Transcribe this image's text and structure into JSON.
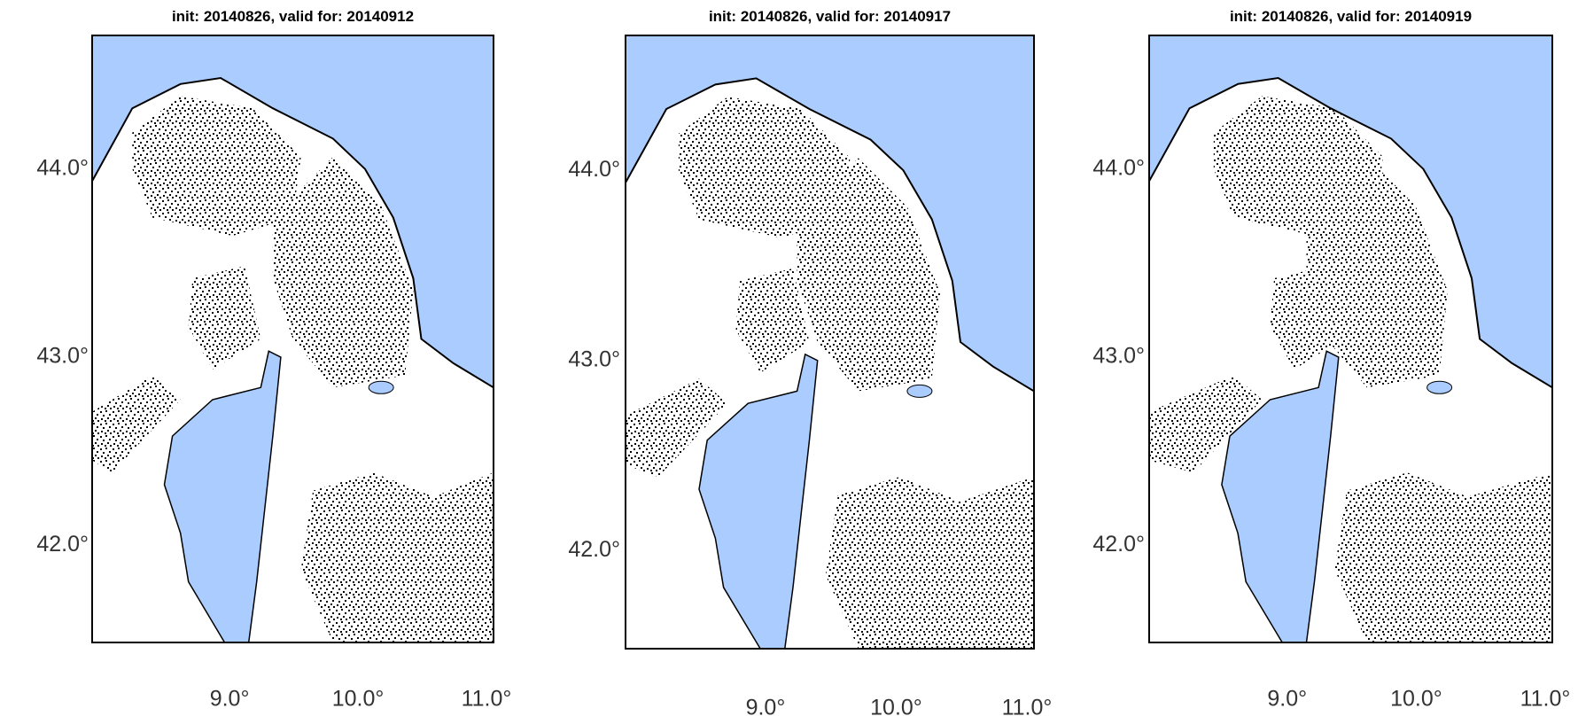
{
  "panels": [
    {
      "title": "init: 20140826, valid for: 20140912",
      "yticks": [
        "44.0°",
        "43.0°",
        "42.0°"
      ],
      "xticks": [
        "9.0°",
        "10.0°",
        "11.0°"
      ]
    },
    {
      "title": "init: 20140826, valid for: 20140917",
      "yticks": [
        "44.0°",
        "43.0°",
        "42.0°"
      ],
      "xticks": [
        "9.0°",
        "10.0°",
        "11.0°"
      ]
    },
    {
      "title": "init: 20140826, valid for: 20140919",
      "yticks": [
        "44.0°",
        "43.0°",
        "42.0°"
      ],
      "xticks": [
        "9.0°",
        "10.0°",
        "11.0°"
      ]
    }
  ]
}
